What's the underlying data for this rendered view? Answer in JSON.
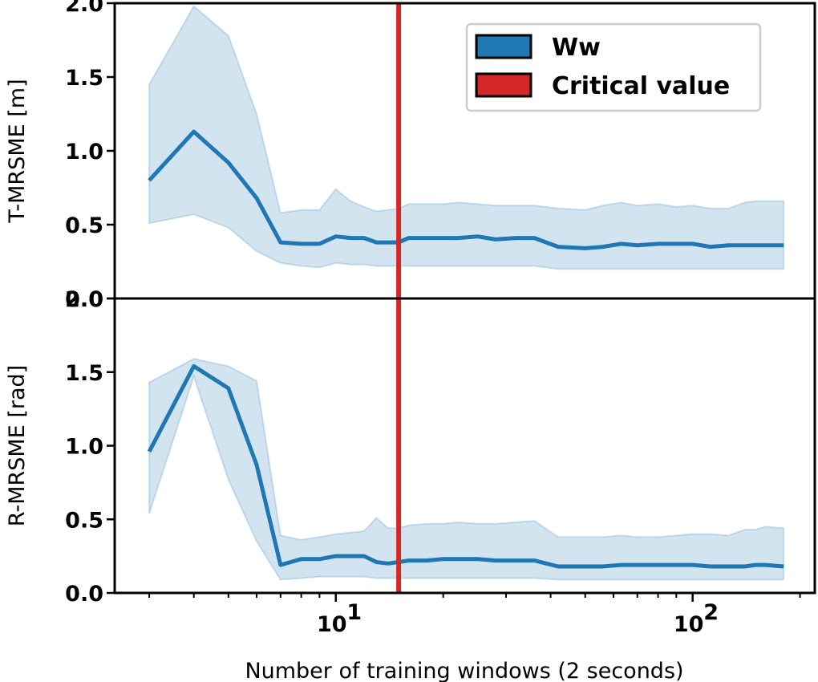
{
  "chart_data": [
    {
      "type": "line",
      "panel": "top",
      "xscale": "log",
      "xlim": [
        2.4,
        220
      ],
      "ylim": [
        0,
        2.0
      ],
      "yticks": [
        "0.0",
        "0.5",
        "1.0",
        "1.5",
        "2.0"
      ],
      "ylabel": "T-MRSME [m]",
      "xlabel": "",
      "x": [
        3,
        4,
        5,
        6,
        7,
        8,
        9,
        10,
        11,
        12,
        13,
        14,
        15,
        16,
        18,
        20,
        22,
        25,
        28,
        32,
        36,
        42,
        50,
        56,
        63,
        70,
        80,
        90,
        100,
        112,
        126,
        140,
        150,
        160,
        180
      ],
      "series": [
        {
          "name": "Ww",
          "color": "#1f77b4",
          "mean": [
            0.8,
            1.13,
            0.92,
            0.68,
            0.38,
            0.37,
            0.37,
            0.42,
            0.41,
            0.41,
            0.38,
            0.38,
            0.38,
            0.41,
            0.41,
            0.41,
            0.41,
            0.42,
            0.4,
            0.41,
            0.41,
            0.35,
            0.34,
            0.35,
            0.37,
            0.36,
            0.37,
            0.37,
            0.37,
            0.35,
            0.36,
            0.36,
            0.36,
            0.36,
            0.36
          ],
          "upper": [
            1.45,
            1.98,
            1.78,
            1.25,
            0.58,
            0.6,
            0.6,
            0.74,
            0.66,
            0.62,
            0.59,
            0.6,
            0.61,
            0.64,
            0.64,
            0.64,
            0.65,
            0.64,
            0.63,
            0.63,
            0.63,
            0.61,
            0.6,
            0.63,
            0.65,
            0.63,
            0.64,
            0.62,
            0.63,
            0.61,
            0.61,
            0.65,
            0.66,
            0.66,
            0.66
          ],
          "lower": [
            0.51,
            0.57,
            0.48,
            0.32,
            0.24,
            0.22,
            0.21,
            0.24,
            0.23,
            0.23,
            0.22,
            0.22,
            0.22,
            0.22,
            0.22,
            0.22,
            0.22,
            0.22,
            0.22,
            0.22,
            0.22,
            0.2,
            0.2,
            0.2,
            0.2,
            0.2,
            0.2,
            0.2,
            0.2,
            0.2,
            0.2,
            0.2,
            0.2,
            0.2,
            0.2
          ]
        }
      ],
      "vline": {
        "name": "Critical value",
        "x": 15,
        "color": "#d62728"
      },
      "legend": {
        "placement": "top-right",
        "entries": [
          {
            "label": "Ww",
            "color": "#1f77b4"
          },
          {
            "label": "Critical value",
            "color": "#d62728"
          }
        ]
      },
      "grid": false
    },
    {
      "type": "line",
      "panel": "bottom",
      "xscale": "log",
      "xlim": [
        2.4,
        220
      ],
      "ylim": [
        0,
        2.0
      ],
      "yticks": [
        "0.0",
        "0.5",
        "1.0",
        "1.5",
        "2.0"
      ],
      "ylabel": "R-MRSME [rad]",
      "xlabel": "Number of training windows (2 seconds)",
      "xticks": [
        {
          "value": 10,
          "base": "10",
          "exp": "1"
        },
        {
          "value": 100,
          "base": "10",
          "exp": "2"
        }
      ],
      "x": [
        3,
        4,
        5,
        6,
        7,
        8,
        9,
        10,
        11,
        12,
        13,
        14,
        15,
        16,
        18,
        20,
        22,
        25,
        28,
        32,
        36,
        42,
        50,
        56,
        63,
        70,
        80,
        90,
        100,
        112,
        126,
        140,
        150,
        160,
        180
      ],
      "series": [
        {
          "name": "Ww",
          "color": "#1f77b4",
          "mean": [
            0.96,
            1.54,
            1.39,
            0.87,
            0.19,
            0.23,
            0.23,
            0.25,
            0.25,
            0.25,
            0.21,
            0.2,
            0.21,
            0.22,
            0.22,
            0.23,
            0.23,
            0.23,
            0.22,
            0.22,
            0.22,
            0.18,
            0.18,
            0.18,
            0.19,
            0.19,
            0.19,
            0.19,
            0.19,
            0.18,
            0.18,
            0.18,
            0.19,
            0.19,
            0.18
          ],
          "upper": [
            1.43,
            1.59,
            1.54,
            1.44,
            0.39,
            0.36,
            0.38,
            0.4,
            0.41,
            0.42,
            0.51,
            0.44,
            0.44,
            0.46,
            0.47,
            0.47,
            0.48,
            0.47,
            0.47,
            0.48,
            0.49,
            0.38,
            0.38,
            0.38,
            0.39,
            0.38,
            0.38,
            0.39,
            0.4,
            0.4,
            0.39,
            0.43,
            0.43,
            0.45,
            0.44
          ],
          "lower": [
            0.54,
            1.47,
            0.77,
            0.35,
            0.09,
            0.1,
            0.11,
            0.11,
            0.11,
            0.11,
            0.1,
            0.1,
            0.1,
            0.1,
            0.1,
            0.1,
            0.1,
            0.1,
            0.1,
            0.1,
            0.1,
            0.09,
            0.09,
            0.09,
            0.09,
            0.09,
            0.09,
            0.09,
            0.09,
            0.09,
            0.09,
            0.09,
            0.09,
            0.09,
            0.09
          ]
        }
      ],
      "vline": {
        "name": "Critical value",
        "x": 15,
        "color": "#d62728"
      },
      "grid": false
    }
  ]
}
